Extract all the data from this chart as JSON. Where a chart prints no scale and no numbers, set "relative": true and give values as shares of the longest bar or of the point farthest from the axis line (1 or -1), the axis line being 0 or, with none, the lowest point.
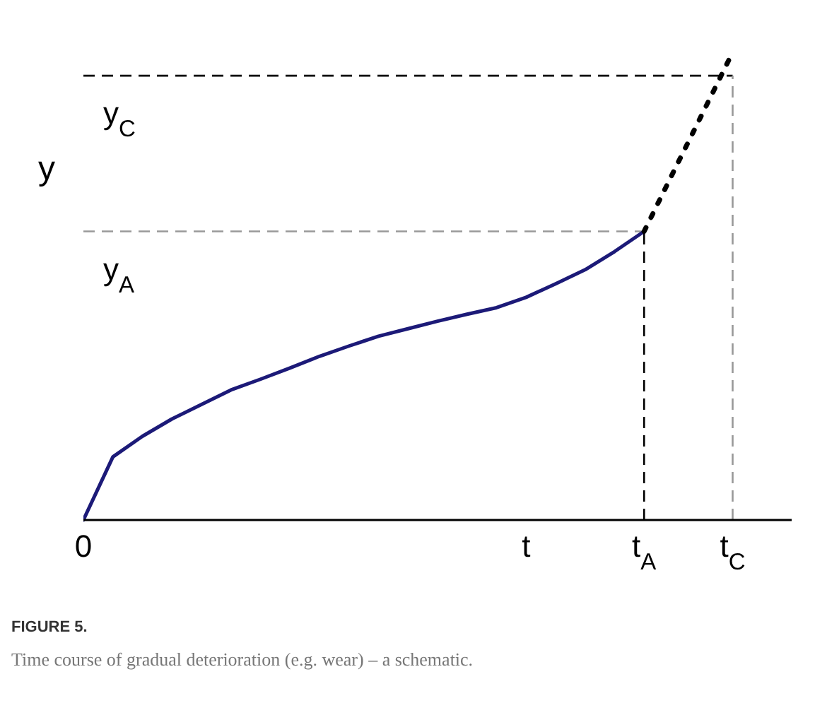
{
  "chart_data": {
    "type": "line",
    "title": "FIGURE 5.",
    "subtitle": "Time course of gradual deterioration (e.g. wear) – a schematic.",
    "ylabel": "y",
    "relative": true,
    "categories": [
      "0",
      null,
      null,
      null,
      null,
      null,
      null,
      null,
      null,
      null,
      null,
      null,
      null,
      null,
      null,
      "t",
      null,
      null,
      null,
      "t$_{A}$",
      null,
      null,
      "t$_{C}$",
      null,
      null
    ],
    "series": [
      {
        "type": "line",
        "line_style": "solid",
        "color": "#1c1a78",
        "values": [
          0,
          0.135,
          0.179,
          0.216,
          0.247,
          0.278,
          0.301,
          0.325,
          0.35,
          0.372,
          0.393,
          0.409,
          0.425,
          0.44,
          0.454,
          0.476,
          0.505,
          0.535,
          0.574,
          0.617,
          null,
          null,
          null,
          null,
          null
        ]
      },
      {
        "type": "line",
        "line_style": "dotted",
        "color": "#000000",
        "values": [
          null,
          null,
          null,
          null,
          null,
          null,
          null,
          null,
          null,
          null,
          null,
          null,
          null,
          null,
          null,
          null,
          null,
          null,
          null,
          0.617,
          0.745,
          0.872,
          1.0,
          null,
          null
        ]
      }
    ],
    "ref_lines": [
      {
        "axis": "y",
        "value": 0.617,
        "label": "y$_{A}$",
        "color": "#999999",
        "line_style": "dashed"
      },
      {
        "axis": "y",
        "value": 0.95,
        "label": "y$_{C}$",
        "color": "#000000",
        "line_style": "dashed"
      },
      {
        "axis": "x",
        "value": "t$_{A}$",
        "color": "#000000",
        "line_style": "dashed"
      },
      {
        "axis": "x",
        "value": "t$_{C}$",
        "color": "#999999",
        "line_style": "dashed"
      }
    ]
  }
}
